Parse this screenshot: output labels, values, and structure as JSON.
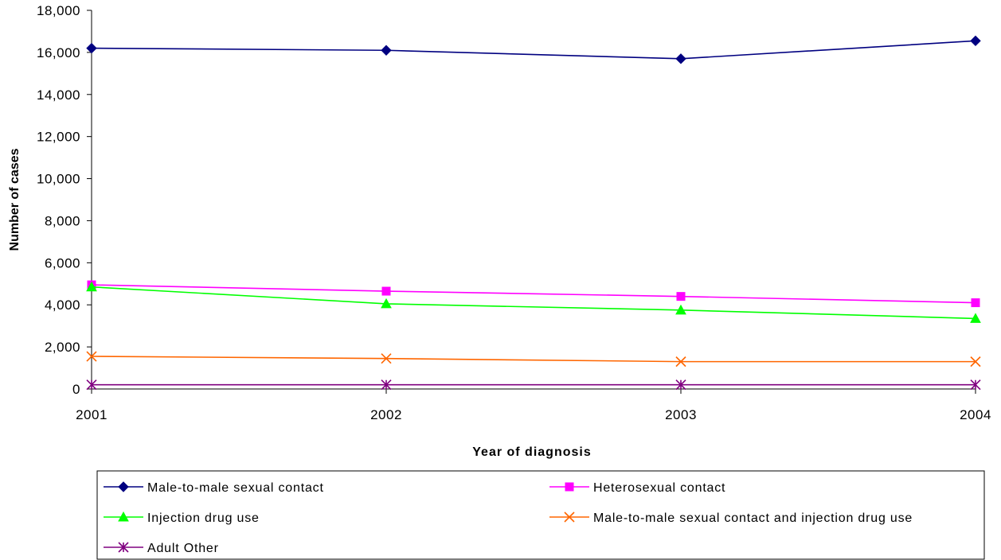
{
  "chart_data": {
    "type": "line",
    "title": "",
    "xlabel": "Year of diagnosis",
    "ylabel": "Number of cases",
    "x": [
      "2001",
      "2002",
      "2003",
      "2004"
    ],
    "ylim": [
      0,
      18000
    ],
    "yticks": [
      "0",
      "2,000",
      "4,000",
      "6,000",
      "8,000",
      "10,000",
      "12,000",
      "14,000",
      "16,000",
      "18,000"
    ],
    "grid": false,
    "legend_position": "bottom",
    "series": [
      {
        "name": "Male-to-male sexual contact",
        "values": [
          16200,
          16100,
          15700,
          16550
        ],
        "color": "#000080",
        "marker": "diamond"
      },
      {
        "name": "Heterosexual contact",
        "values": [
          4950,
          4650,
          4400,
          4100
        ],
        "color": "#ff00ff",
        "marker": "square"
      },
      {
        "name": "Injection drug use",
        "values": [
          4850,
          4050,
          3750,
          3350
        ],
        "color": "#00ff00",
        "marker": "triangle"
      },
      {
        "name": "Male-to-male sexual contact and injection drug use",
        "values": [
          1550,
          1450,
          1300,
          1300
        ],
        "color": "#ff6600",
        "marker": "x"
      },
      {
        "name": "Adult Other",
        "values": [
          200,
          200,
          200,
          200
        ],
        "color": "#800080",
        "marker": "star"
      }
    ]
  }
}
